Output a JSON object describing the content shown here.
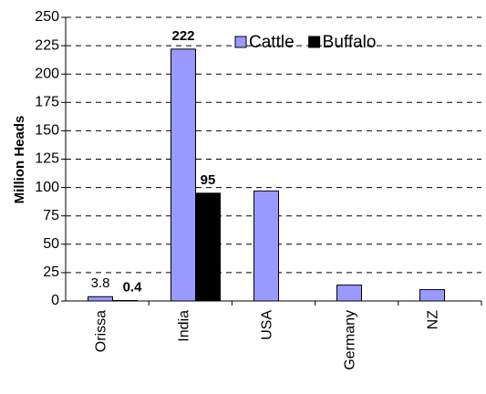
{
  "chart_data": {
    "type": "bar",
    "y_label": "Million Heads",
    "categories": [
      "Orissa",
      "India",
      "USA",
      "Germany",
      "NZ"
    ],
    "series": [
      {
        "name": "Cattle",
        "color": "#9999ff",
        "values": [
          3.8,
          222,
          97,
          14,
          10
        ],
        "value_labels": [
          "3.8",
          "222",
          null,
          null,
          null
        ]
      },
      {
        "name": "Buffalo",
        "color": "#000000",
        "values": [
          0.4,
          95,
          null,
          null,
          null
        ],
        "value_labels": [
          "0.4",
          "95",
          null,
          null,
          null
        ]
      }
    ],
    "ylim": [
      0,
      250
    ],
    "yticks": [
      0,
      25,
      50,
      75,
      100,
      125,
      150,
      175,
      200,
      225,
      250
    ],
    "grid": true,
    "legend": "top-right"
  }
}
